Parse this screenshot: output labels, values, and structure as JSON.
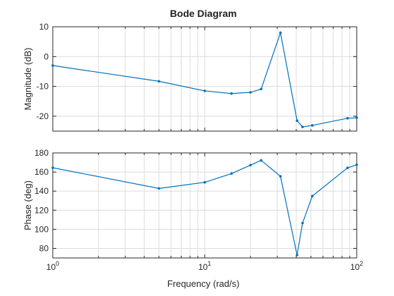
{
  "chart_data": {
    "type": "line",
    "title": "Bode Diagram",
    "xlabel": "Frequency (rad/s)",
    "xscale": "log",
    "xlim": [
      1,
      100
    ],
    "x_tick_labels": [
      {
        "base": "10",
        "exp": "0"
      },
      {
        "base": "10",
        "exp": "1"
      },
      {
        "base": "10",
        "exp": "2"
      }
    ],
    "color": "#0072BD",
    "grid": true,
    "panels": [
      {
        "ylabel": "Magnitude (dB)",
        "ylim": [
          -25,
          10
        ],
        "yticks": [
          10,
          0,
          -10,
          -20
        ],
        "ytick_labels": [
          "10",
          "0",
          "-10",
          "-20"
        ],
        "series": [
          {
            "x": [
              1,
              5,
              10,
              15,
              20,
              23.5,
              31.5,
              40.5,
              44,
              51,
              87,
              100
            ],
            "y": [
              -3,
              -8.3,
              -11.5,
              -12.4,
              -12,
              -10.9,
              8,
              -21.5,
              -23.6,
              -23.1,
              -20.7,
              -20.5
            ]
          }
        ]
      },
      {
        "ylabel": "Phase (deg)",
        "ylim": [
          70,
          180
        ],
        "yticks": [
          180,
          160,
          140,
          120,
          100,
          80
        ],
        "ytick_labels": [
          "180",
          "160",
          "140",
          "120",
          "100",
          "80"
        ],
        "series": [
          {
            "x": [
              1,
              5,
              10,
              15,
              20,
              23.5,
              31.5,
              40.5,
              44,
              51,
              87,
              100
            ],
            "y": [
              164.5,
              142.8,
              149.2,
              158.4,
              167.2,
              172.2,
              155.5,
              73,
              106.5,
              134.8,
              164.4,
              167.6
            ]
          }
        ]
      }
    ]
  }
}
